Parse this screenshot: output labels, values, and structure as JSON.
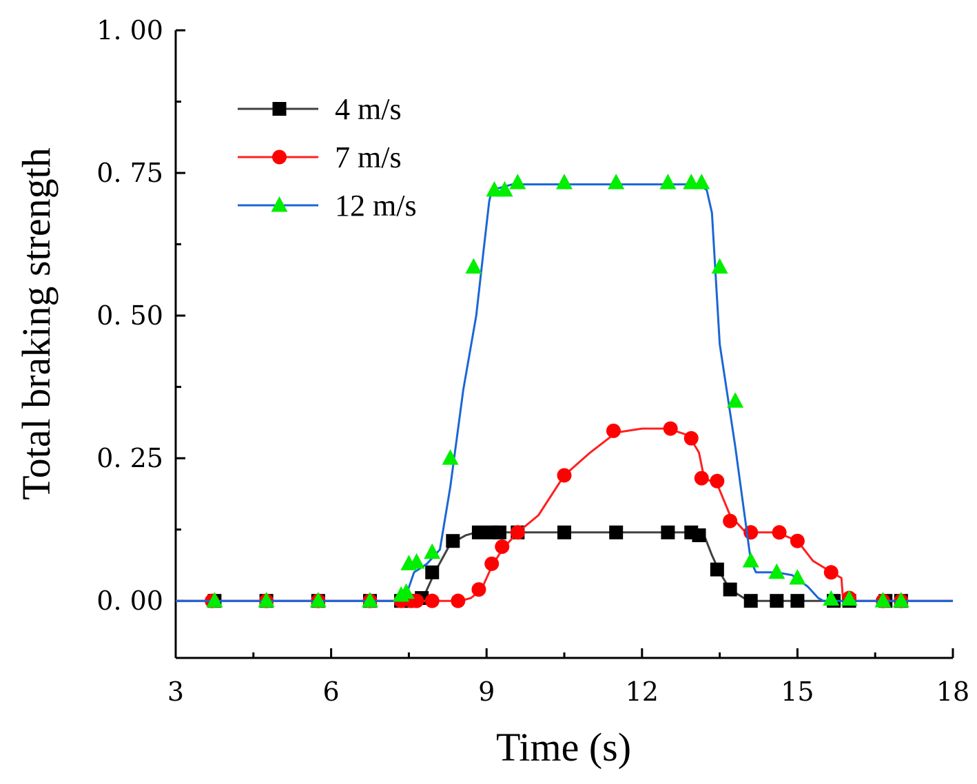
{
  "chart_data": {
    "type": "line",
    "title": "",
    "xlabel": "Time (s)",
    "ylabel": "Total braking strength",
    "xlim": [
      3,
      18
    ],
    "ylim": [
      -0.1,
      1.0
    ],
    "xticks": [
      3,
      6,
      9,
      12,
      15,
      18
    ],
    "xtick_labels": [
      "3",
      "6",
      "9",
      "12",
      "15",
      "18"
    ],
    "yticks": [
      0.0,
      0.25,
      0.5,
      0.75,
      1.0
    ],
    "ytick_labels": [
      "0. 00",
      "0. 25",
      "0. 50",
      "0. 75",
      "1. 00"
    ],
    "legend_position": "top-left",
    "grid": false,
    "series": [
      {
        "name": "4 m/s",
        "color": "#000000",
        "line_color": "#404040",
        "marker": "square",
        "line": [
          [
            3,
            0
          ],
          [
            7.3,
            0
          ],
          [
            7.6,
            0
          ],
          [
            7.8,
            0.01
          ],
          [
            8.0,
            0.05
          ],
          [
            8.3,
            0.1
          ],
          [
            8.6,
            0.115
          ],
          [
            8.8,
            0.12
          ],
          [
            13.0,
            0.12
          ],
          [
            13.2,
            0.115
          ],
          [
            13.35,
            0.08
          ],
          [
            13.5,
            0.05
          ],
          [
            13.7,
            0.02
          ],
          [
            14.0,
            0.003
          ],
          [
            14.2,
            0
          ],
          [
            18,
            0
          ]
        ],
        "markers": [
          [
            3.75,
            0
          ],
          [
            4.75,
            0
          ],
          [
            5.75,
            0
          ],
          [
            6.75,
            0
          ],
          [
            7.35,
            0
          ],
          [
            7.55,
            0
          ],
          [
            7.75,
            0.005
          ],
          [
            7.95,
            0.05
          ],
          [
            8.35,
            0.105
          ],
          [
            8.85,
            0.12
          ],
          [
            9.1,
            0.12
          ],
          [
            9.25,
            0.12
          ],
          [
            9.6,
            0.12
          ],
          [
            10.5,
            0.12
          ],
          [
            11.5,
            0.12
          ],
          [
            12.5,
            0.12
          ],
          [
            12.95,
            0.12
          ],
          [
            13.1,
            0.115
          ],
          [
            13.45,
            0.055
          ],
          [
            13.7,
            0.02
          ],
          [
            14.1,
            0
          ],
          [
            14.6,
            0
          ],
          [
            15.0,
            0
          ],
          [
            15.7,
            0
          ],
          [
            16.0,
            0
          ],
          [
            16.7,
            0
          ],
          [
            17.0,
            0
          ]
        ]
      },
      {
        "name": "7 m/s",
        "color": "#ff0000",
        "line_color": "#ff2020",
        "marker": "circle",
        "line": [
          [
            3,
            0
          ],
          [
            8.5,
            0
          ],
          [
            8.7,
            0.005
          ],
          [
            8.9,
            0.02
          ],
          [
            9.1,
            0.06
          ],
          [
            9.3,
            0.09
          ],
          [
            9.6,
            0.12
          ],
          [
            10.0,
            0.15
          ],
          [
            10.5,
            0.22
          ],
          [
            11.0,
            0.26
          ],
          [
            11.5,
            0.295
          ],
          [
            12.0,
            0.302
          ],
          [
            12.5,
            0.302
          ],
          [
            12.9,
            0.29
          ],
          [
            13.1,
            0.26
          ],
          [
            13.2,
            0.215
          ],
          [
            13.45,
            0.205
          ],
          [
            13.7,
            0.15
          ],
          [
            14.0,
            0.12
          ],
          [
            14.6,
            0.12
          ],
          [
            15.0,
            0.105
          ],
          [
            15.3,
            0.07
          ],
          [
            15.7,
            0.048
          ],
          [
            15.85,
            0.04
          ],
          [
            15.88,
            0
          ],
          [
            18,
            0
          ]
        ],
        "markers": [
          [
            3.7,
            0
          ],
          [
            4.75,
            0
          ],
          [
            5.75,
            0
          ],
          [
            6.75,
            0
          ],
          [
            7.35,
            0
          ],
          [
            7.55,
            0
          ],
          [
            7.65,
            0
          ],
          [
            7.95,
            0
          ],
          [
            8.45,
            0
          ],
          [
            8.85,
            0.02
          ],
          [
            9.1,
            0.065
          ],
          [
            9.3,
            0.095
          ],
          [
            9.6,
            0.12
          ],
          [
            10.5,
            0.22
          ],
          [
            11.45,
            0.298
          ],
          [
            12.55,
            0.302
          ],
          [
            12.95,
            0.285
          ],
          [
            13.15,
            0.215
          ],
          [
            13.45,
            0.21
          ],
          [
            13.7,
            0.14
          ],
          [
            14.1,
            0.12
          ],
          [
            14.65,
            0.12
          ],
          [
            15.0,
            0.105
          ],
          [
            15.65,
            0.05
          ],
          [
            16.0,
            0.005
          ],
          [
            16.65,
            0
          ],
          [
            17.0,
            0
          ]
        ]
      },
      {
        "name": "12 m/s",
        "color": "#00ee00",
        "line_color": "#1a66d6",
        "marker": "triangle",
        "line": [
          [
            3,
            0
          ],
          [
            7.3,
            0
          ],
          [
            7.45,
            0.01
          ],
          [
            7.6,
            0.05
          ],
          [
            7.85,
            0.065
          ],
          [
            8.1,
            0.09
          ],
          [
            8.3,
            0.2
          ],
          [
            8.55,
            0.37
          ],
          [
            8.8,
            0.5
          ],
          [
            8.95,
            0.62
          ],
          [
            9.05,
            0.7
          ],
          [
            9.1,
            0.72
          ],
          [
            9.5,
            0.73
          ],
          [
            13.1,
            0.73
          ],
          [
            13.25,
            0.72
          ],
          [
            13.35,
            0.68
          ],
          [
            13.5,
            0.45
          ],
          [
            13.8,
            0.27
          ],
          [
            14.1,
            0.07
          ],
          [
            14.2,
            0.05
          ],
          [
            14.6,
            0.05
          ],
          [
            14.9,
            0.045
          ],
          [
            15.2,
            0.025
          ],
          [
            15.4,
            0.005
          ],
          [
            15.5,
            0
          ],
          [
            18,
            0
          ]
        ],
        "markers": [
          [
            3.75,
            0
          ],
          [
            4.75,
            0
          ],
          [
            5.75,
            0
          ],
          [
            6.75,
            0
          ],
          [
            7.35,
            0.01
          ],
          [
            7.45,
            0.015
          ],
          [
            7.5,
            0.065
          ],
          [
            7.65,
            0.068
          ],
          [
            7.95,
            0.085
          ],
          [
            8.3,
            0.25
          ],
          [
            8.75,
            0.585
          ],
          [
            9.15,
            0.72
          ],
          [
            9.35,
            0.72
          ],
          [
            9.6,
            0.733
          ],
          [
            10.5,
            0.733
          ],
          [
            11.5,
            0.733
          ],
          [
            12.5,
            0.733
          ],
          [
            12.95,
            0.733
          ],
          [
            13.15,
            0.733
          ],
          [
            13.5,
            0.585
          ],
          [
            13.8,
            0.35
          ],
          [
            14.1,
            0.07
          ],
          [
            14.6,
            0.05
          ],
          [
            15.0,
            0.04
          ],
          [
            15.65,
            0.003
          ],
          [
            16.0,
            0.003
          ],
          [
            16.65,
            0
          ],
          [
            17.0,
            0
          ]
        ]
      }
    ]
  }
}
